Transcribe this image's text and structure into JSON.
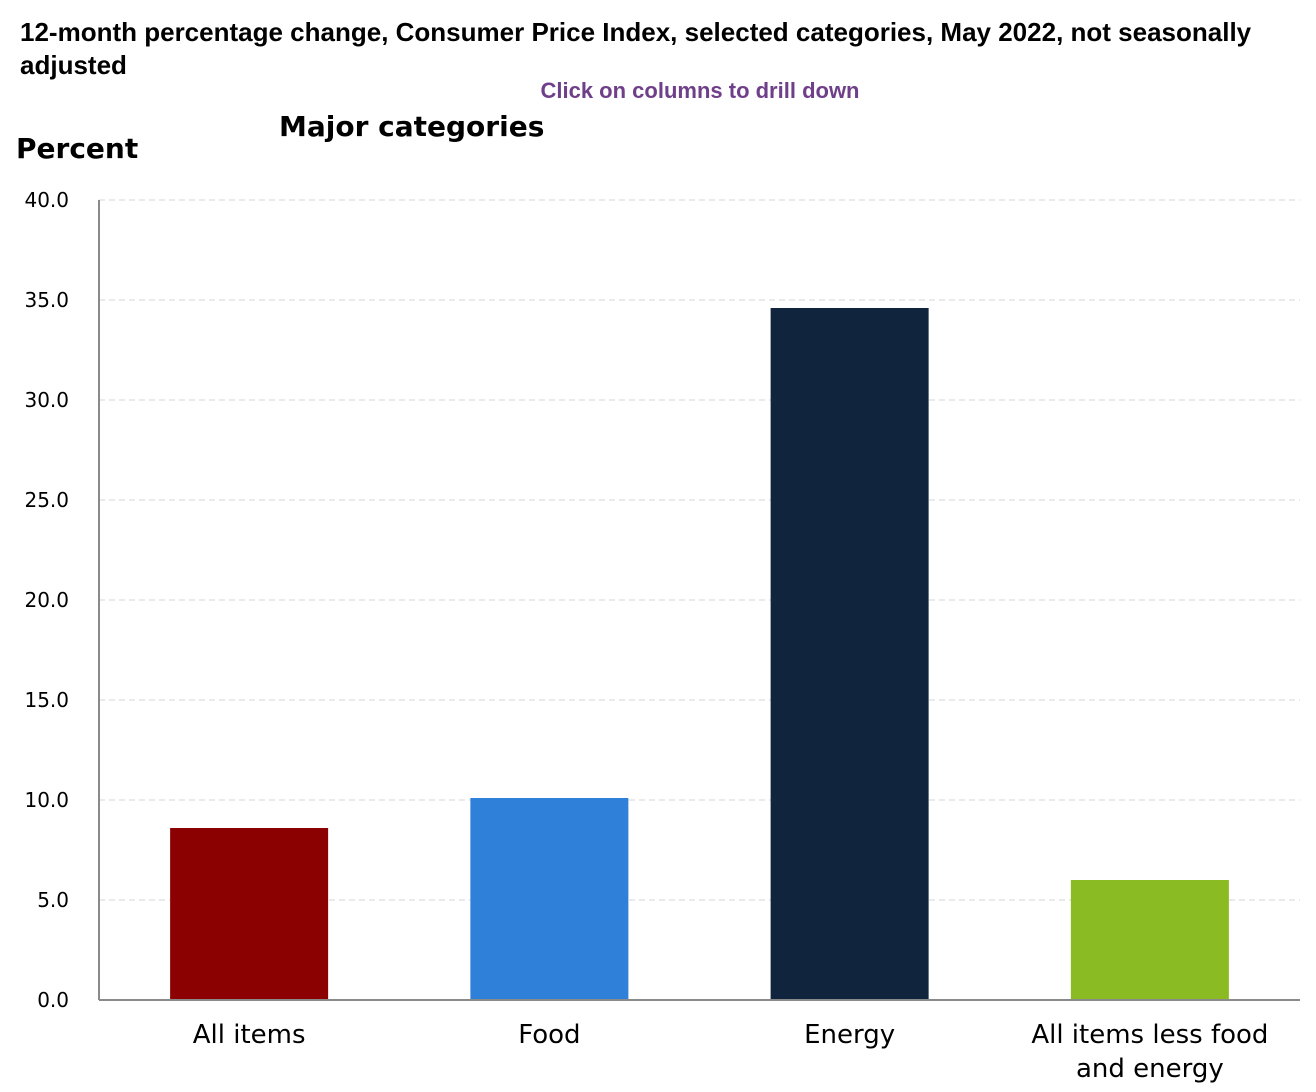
{
  "header": {
    "title": "12-month percentage change, Consumer Price Index, selected categories, May 2022, not seasonally adjusted",
    "drill_hint": "Click on columns to drill down",
    "subtitle": "Major categories",
    "ylabel": "Percent"
  },
  "chart_data": {
    "type": "bar",
    "title": "12-month percentage change, Consumer Price Index, selected categories, May 2022, not seasonally adjusted",
    "subtitle": "Major categories",
    "xlabel": "",
    "ylabel": "Percent",
    "ylim": [
      0,
      40
    ],
    "yticks": [
      "0.0",
      "5.0",
      "10.0",
      "15.0",
      "20.0",
      "25.0",
      "30.0",
      "35.0",
      "40.0"
    ],
    "grid": true,
    "categories": [
      [
        "All items"
      ],
      [
        "Food"
      ],
      [
        "Energy"
      ],
      [
        "All items less food",
        "and energy"
      ]
    ],
    "values": [
      8.6,
      10.1,
      34.6,
      6.0
    ],
    "colors": [
      "#8b0000",
      "#2f80d9",
      "#10243d",
      "#8bbb23"
    ]
  }
}
